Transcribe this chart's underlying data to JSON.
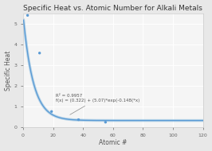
{
  "title": "Specific Heat vs. Atomic Number for Alkali Metals",
  "xlabel": "Atomic #",
  "ylabel": "Specific Heat",
  "scatter_x": [
    3,
    11,
    19,
    37,
    55
  ],
  "scatter_y": [
    5.4,
    3.58,
    0.757,
    0.363,
    0.242
  ],
  "fit_a": 0.322,
  "fit_b": 5.07,
  "fit_c": -0.148,
  "r_squared": 0.9957,
  "annot_line1": "R² = 0.9957",
  "annot_line2": "f(x) = (0.322) + (5.07)*exp(-0.148(*x)",
  "xlim": [
    0,
    120
  ],
  "ylim": [
    0,
    5.5
  ],
  "xticks": [
    0,
    20,
    40,
    60,
    80,
    100,
    120
  ],
  "yticks": [
    0,
    1,
    2,
    3,
    4,
    5
  ],
  "scatter_color": "#5b9bd5",
  "line_color": "#5b9bd5",
  "line_color2": "#92c0e0",
  "bg_color": "#e8e8e8",
  "plot_bg": "#f5f5f5",
  "grid_color": "#ffffff",
  "title_fontsize": 6.5,
  "label_fontsize": 5.5,
  "tick_fontsize": 4.5,
  "annot_fontsize": 4.0
}
